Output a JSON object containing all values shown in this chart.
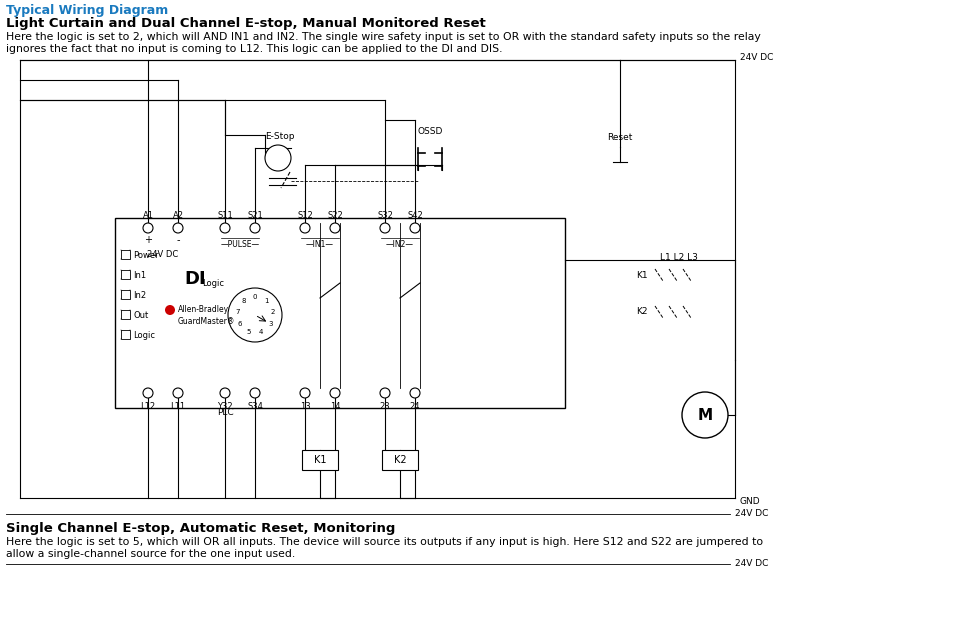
{
  "title_colored": "Typical Wiring Diagram",
  "title_color": "#1a7abf",
  "subtitle": "Light Curtain and Dual Channel E-stop, Manual Monitored Reset",
  "body_text1": "Here the logic is set to 2, which will AND IN1 and IN2. The single wire safety input is set to OR with the standard safety inputs so the relay",
  "body_text2": "ignores the fact that no input is coming to L12. This logic can be applied to the DI and DIS.",
  "bottom_subtitle": "Single Channel E-stop, Automatic Reset, Monitoring",
  "bottom_body1": "Here the logic is set to 5, which will OR all inputs. The device will source its outputs if any input is high. Here S12 and S22 are jumpered to",
  "bottom_body2": "allow a single-channel source for the one input used.",
  "bg_color": "#ffffff",
  "line_color": "#000000"
}
